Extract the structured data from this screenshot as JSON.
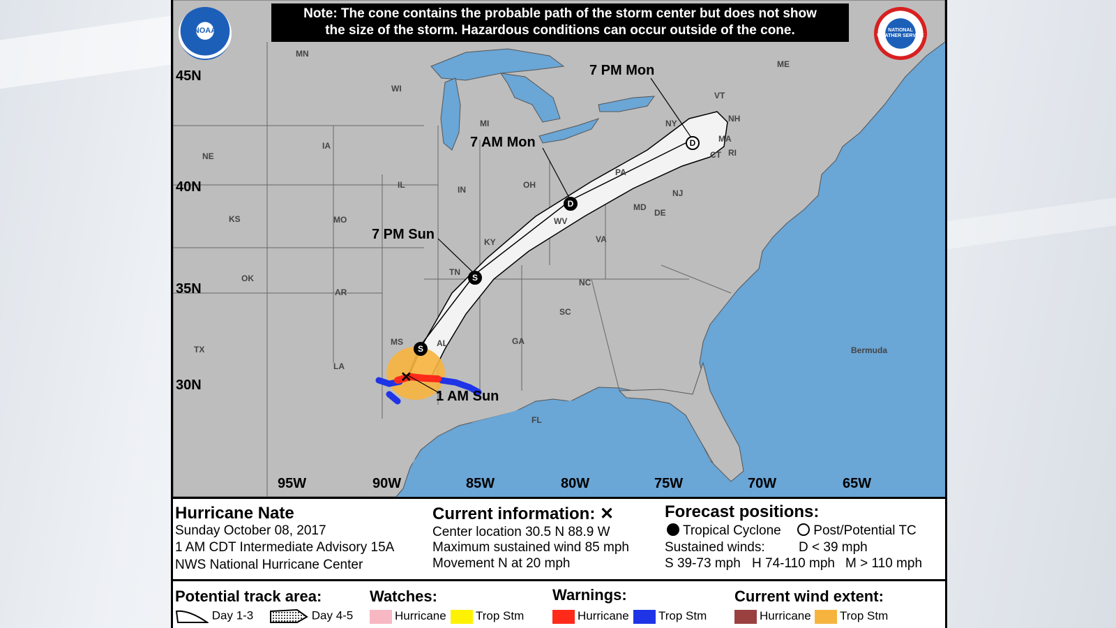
{
  "note": {
    "line1": "Note: The cone contains the probable path of the storm center but does not show",
    "line2": "the size of the storm. Hazardous conditions can occur outside of the cone."
  },
  "logos": {
    "noaa": "NOAA",
    "nws": "NATIONAL WEATHER SERVICE"
  },
  "map": {
    "lat_labels": [
      "45N",
      "40N",
      "35N",
      "30N"
    ],
    "lon_labels": [
      "95W",
      "90W",
      "85W",
      "80W",
      "75W",
      "70W",
      "65W"
    ],
    "states": [
      "MN",
      "WI",
      "MI",
      "IA",
      "NE",
      "IL",
      "IN",
      "OH",
      "PA",
      "NY",
      "ME",
      "VT",
      "NH",
      "MA",
      "CT",
      "RI",
      "NJ",
      "MD",
      "DE",
      "WV",
      "VA",
      "KY",
      "KS",
      "MO",
      "OK",
      "AR",
      "TN",
      "NC",
      "SC",
      "MS",
      "AL",
      "GA",
      "LA",
      "TX",
      "FL"
    ],
    "bermuda": "Bermuda",
    "track_labels": {
      "pt1": "7 PM Mon",
      "pt2": "7 AM Mon",
      "pt3": "7 PM Sun",
      "pt4": "1 AM Sun"
    },
    "markers": {
      "s": "S",
      "d": "D",
      "x": "✕"
    },
    "colors": {
      "ocean": "#6aa6d6",
      "land": "#bdbdbd",
      "cone": "#f3f3f3",
      "hurricane_warning": "#ff2a1a",
      "ts_warning": "#1f34e6",
      "ts_wind": "#f6b43f"
    }
  },
  "info": {
    "storm_name": "Hurricane Nate",
    "date": "Sunday October 08, 2017",
    "advisory": "1 AM CDT Intermediate Advisory 15A",
    "center": "NWS National Hurricane Center",
    "current_title": "Current information: ✕",
    "location": "Center location 30.5 N 88.9 W",
    "wind": "Maximum sustained wind 85 mph",
    "movement": "Movement N at 20 mph",
    "forecast_title": "Forecast positions:",
    "tc_label": "Tropical Cyclone",
    "post_label": "Post/Potential TC",
    "sustained": "Sustained winds:",
    "d_def": "D < 39 mph",
    "s_def": "S 39-73 mph",
    "h_def": "H 74-110 mph",
    "m_def": "M > 110 mph"
  },
  "legend": {
    "track_title": "Potential track area:",
    "day13": "Day 1-3",
    "day45": "Day 4-5",
    "watches_title": "Watches:",
    "watch_hurricane": "Hurricane",
    "watch_ts": "Trop Stm",
    "warnings_title": "Warnings:",
    "warn_hurricane": "Hurricane",
    "warn_ts": "Trop Stm",
    "wind_title": "Current wind extent:",
    "wind_hurricane": "Hurricane",
    "wind_ts": "Trop Stm",
    "colors": {
      "watch_hurricane": "#f7b8c4",
      "watch_ts": "#fff200",
      "warn_hurricane": "#ff2a1a",
      "warn_ts": "#1f34e6",
      "wind_hurricane": "#9b4040",
      "wind_ts": "#f6b43f"
    }
  }
}
